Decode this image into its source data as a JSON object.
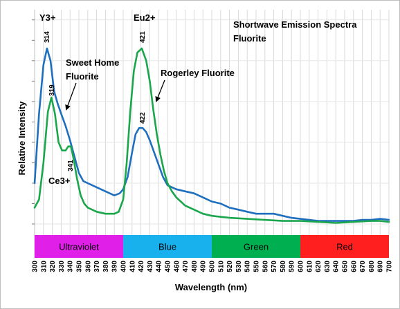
{
  "chart_data": {
    "type": "line",
    "title": "Shortwave Emission Spectra",
    "subtitle": "Fluorite",
    "xlabel": "Wavelength (nm)",
    "ylabel": "Relative Intensity",
    "xlim": [
      300,
      700
    ],
    "ylim": [
      0,
      105
    ],
    "x_ticks": [
      "300",
      "310",
      "320",
      "330",
      "340",
      "350",
      "360",
      "370",
      "380",
      "390",
      "400",
      "410",
      "420",
      "430",
      "440",
      "450",
      "460",
      "470",
      "480",
      "490",
      "500",
      "510",
      "520",
      "530",
      "540",
      "550",
      "560",
      "570",
      "580",
      "590",
      "600",
      "610",
      "620",
      "630",
      "640",
      "650",
      "660",
      "670",
      "680",
      "690",
      "700"
    ],
    "grid": true,
    "series": [
      {
        "name": "Sweet Home Fluorite",
        "color": "#1f6fbf",
        "x": [
          300,
          305,
          310,
          314,
          318,
          322,
          326,
          330,
          335,
          340,
          345,
          350,
          355,
          360,
          370,
          380,
          390,
          396,
          400,
          405,
          410,
          414,
          418,
          422,
          426,
          430,
          435,
          440,
          445,
          450,
          455,
          460,
          470,
          480,
          490,
          500,
          510,
          520,
          530,
          540,
          550,
          560,
          570,
          580,
          590,
          600,
          610,
          620,
          630,
          640,
          650,
          660,
          670,
          680,
          690,
          700
        ],
        "y": [
          20,
          54,
          78,
          86,
          80,
          65,
          59,
          54,
          48,
          41,
          33,
          25,
          21,
          20,
          18,
          16,
          14,
          15,
          17,
          23,
          35,
          44,
          47,
          47,
          45,
          41,
          35,
          29,
          23,
          19,
          18,
          17,
          16,
          15,
          13,
          11,
          10,
          8,
          7,
          6,
          5,
          5,
          5,
          4,
          3,
          2.5,
          2,
          1.5,
          1.5,
          1.5,
          1.5,
          1.5,
          2,
          2,
          2.5,
          2
        ]
      },
      {
        "name": "Rogerley Fluorite",
        "color": "#1aa64a",
        "x": [
          300,
          305,
          310,
          315,
          319,
          323,
          327,
          331,
          335,
          338,
          341,
          344,
          348,
          352,
          356,
          360,
          370,
          380,
          390,
          395,
          400,
          404,
          408,
          412,
          416,
          421,
          426,
          430,
          434,
          438,
          442,
          446,
          450,
          455,
          460,
          470,
          480,
          490,
          500,
          510,
          520,
          540,
          560,
          580,
          600,
          620,
          640,
          660,
          680,
          690,
          700
        ],
        "y": [
          8,
          12,
          30,
          55,
          62,
          54,
          40,
          36,
          36,
          38,
          38,
          32,
          22,
          14,
          10,
          8,
          6,
          5,
          5,
          6,
          12,
          30,
          55,
          75,
          84,
          86,
          80,
          70,
          56,
          44,
          34,
          26,
          20,
          16,
          13,
          9,
          7,
          5,
          4,
          3.5,
          3,
          2.5,
          2,
          1.5,
          1.5,
          1,
          0.5,
          1,
          1.5,
          1.5,
          1
        ]
      }
    ],
    "annotations": {
      "peak_314": "314",
      "peak_319": "319",
      "peak_341": "341",
      "peak_421": "421",
      "peak_422": "422",
      "y3": "Y3+",
      "eu2": "Eu2+",
      "ce3": "Ce3+",
      "sweet_home_line1": "Sweet Home",
      "sweet_home_line2": "Fluorite",
      "rogerley": "Rogerley Fluorite"
    },
    "bands": [
      {
        "label": "Ultraviolet",
        "from": 300,
        "to": 400,
        "color": "#e020e8"
      },
      {
        "label": "Blue",
        "from": 400,
        "to": 500,
        "color": "#19b0ee"
      },
      {
        "label": "Green",
        "from": 500,
        "to": 600,
        "color": "#00b050"
      },
      {
        "label": "Red",
        "from": 600,
        "to": 700,
        "color": "#ff1f1f"
      }
    ]
  }
}
